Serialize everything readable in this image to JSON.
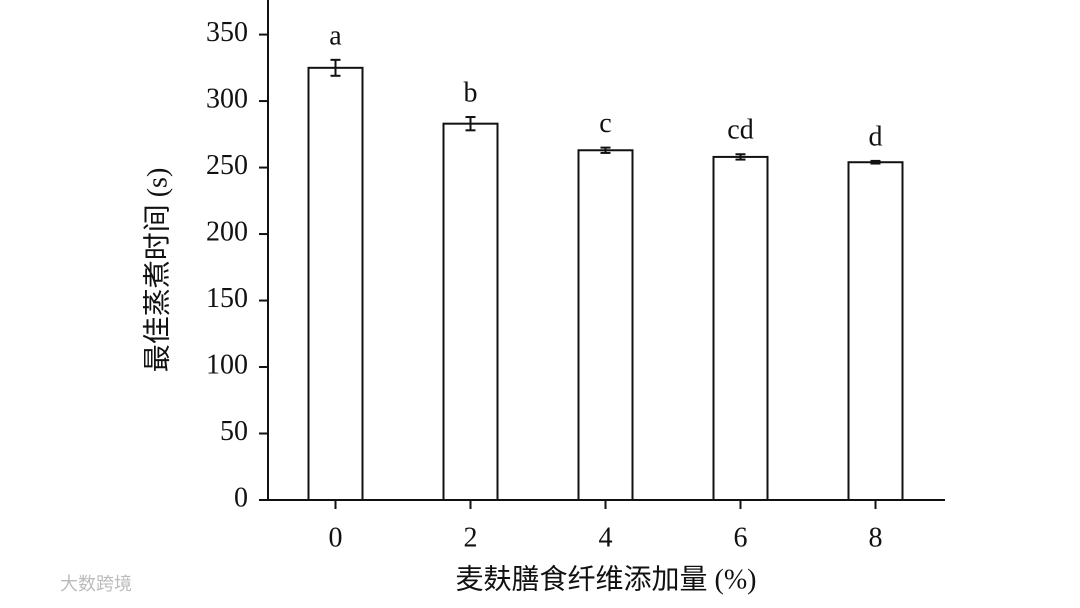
{
  "chart_data": {
    "type": "bar",
    "x_label": "麦麸膳食纤维添加量 (%)",
    "y_label": "最佳蒸煮时间 (s)",
    "categories": [
      "0",
      "2",
      "4",
      "6",
      "8"
    ],
    "values": [
      325,
      283,
      263,
      258,
      254
    ],
    "errors": [
      6,
      5,
      2,
      2,
      1
    ],
    "significance_labels": [
      "a",
      "b",
      "c",
      "cd",
      "d"
    ],
    "color": "#ffffff",
    "ylim": [
      0,
      376
    ],
    "yticks": [
      0,
      50,
      100,
      150,
      200,
      250,
      300,
      350
    ],
    "watermark": "大数跨境"
  }
}
